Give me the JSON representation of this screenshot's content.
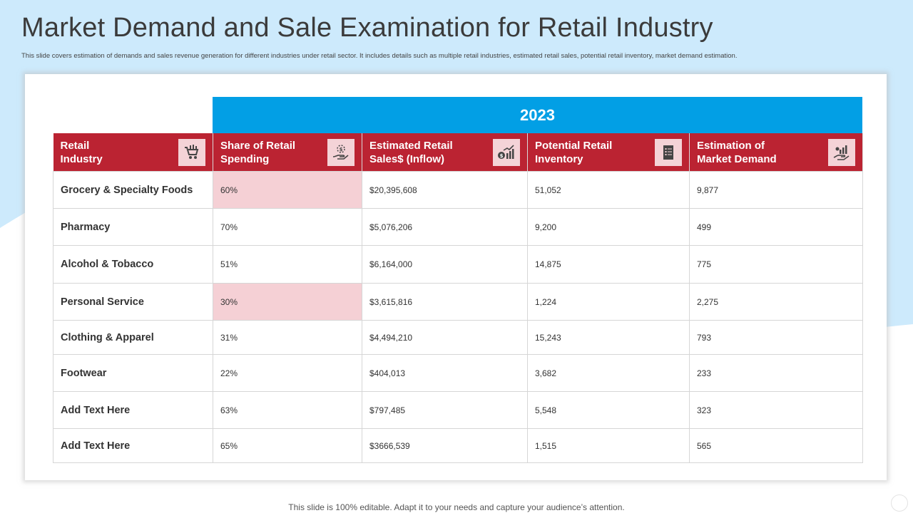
{
  "page": {
    "title": "Market Demand and Sale Examination for Retail Industry",
    "subtitle": "This slide covers estimation of demands and sales revenue generation for different industries under retail sector. It includes details such as multiple retail industries, estimated retail sales, potential retail inventory, market demand estimation.",
    "footer": "This slide is 100% editable. Adapt it to your needs and capture your audience’s attention."
  },
  "colors": {
    "background_wave": "#cdeafc",
    "year_bar": "#029fe5",
    "header_red": "#bb2332",
    "highlight_pink": "#f5d0d5",
    "icon_box": "#f4d3d7"
  },
  "table": {
    "year": "2023",
    "headers": [
      {
        "label": "Retail\nIndustry",
        "icon": "shopping-cart-icon"
      },
      {
        "label": "Share of Retail\nSpending",
        "icon": "money-hand-icon"
      },
      {
        "label": "Estimated Retail\nSales$ (Inflow)",
        "icon": "growth-chart-icon"
      },
      {
        "label": "Potential Retail\nInventory",
        "icon": "document-list-icon"
      },
      {
        "label": "Estimation of\nMarket Demand",
        "icon": "hand-chart-icon"
      }
    ],
    "rows": [
      {
        "industry": "Grocery & Specialty Foods",
        "share": "60%",
        "sales": "$20,395,608",
        "inventory": "51,052",
        "demand": "9,877",
        "highlight": true
      },
      {
        "industry": "Pharmacy",
        "share": "70%",
        "sales": "$5,076,206",
        "inventory": "9,200",
        "demand": "499",
        "highlight": false
      },
      {
        "industry": "Alcohol  & Tobacco",
        "share": "51%",
        "sales": "$6,164,000",
        "inventory": "14,875",
        "demand": "775",
        "highlight": false
      },
      {
        "industry": "Personal Service",
        "share": "30%",
        "sales": "$3,615,816",
        "inventory": "1,224",
        "demand": "2,275",
        "highlight": true
      },
      {
        "industry": "Clothing & Apparel",
        "share": "31%",
        "sales": "$4,494,210",
        "inventory": "15,243",
        "demand": "793",
        "highlight": false
      },
      {
        "industry": "Footwear",
        "share": "22%",
        "sales": "$404,013",
        "inventory": "3,682",
        "demand": "233",
        "highlight": false
      },
      {
        "industry": "Add  Text Here",
        "share": "63%",
        "sales": "$797,485",
        "inventory": "5,548",
        "demand": "323",
        "highlight": false
      },
      {
        "industry": "Add  Text Here",
        "share": "65%",
        "sales": "$3666,539",
        "inventory": "1,515",
        "demand": "565",
        "highlight": false
      }
    ]
  }
}
